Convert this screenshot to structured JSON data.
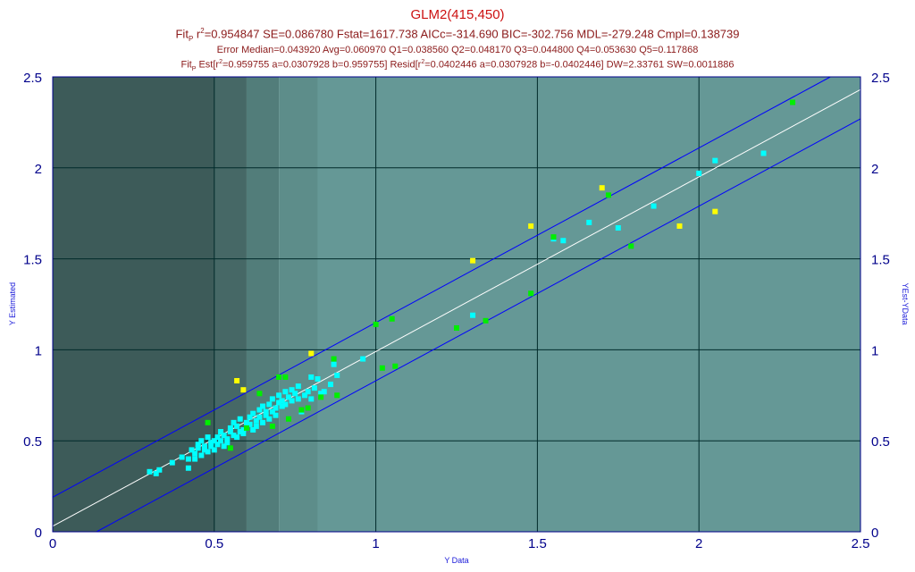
{
  "header": {
    "title": "GLM2(415,450)",
    "fit_prefix": "Fit",
    "fit_sub": "P",
    "fit_r": " r",
    "fit_sup": "2",
    "fit_rest": "=0.954847 SE=0.086780 Fstat=1617.738 AICc=-314.690 BIC=-302.756 MDL=-279.248 Cmpl=0.138739",
    "error_line": "Error Median=0.043920 Avg=0.060970 Q1=0.038560 Q2=0.048170 Q3=0.044800 Q4=0.053630 Q5=0.117868",
    "est_prefix": "Fit",
    "est_sub": "P",
    "est_a": " Est[r",
    "est_sup1": "2",
    "est_b": "=0.959755 a=0.0307928 b=0.959755] Resid[r",
    "est_sup2": "2",
    "est_c": "=0.0402446 a=0.0307928 b=-0.0402446] DW=2.33761 SW=0.0011886"
  },
  "chart_data": {
    "type": "scatter",
    "xlabel": "Y Data",
    "ylabel": "Y Estimated",
    "y2label": "YEst-YData",
    "xlim": [
      0,
      2.5
    ],
    "ylim": [
      0,
      2.5
    ],
    "x_ticks": [
      "0",
      "0.5",
      "1",
      "1.5",
      "2",
      "2.5"
    ],
    "y_ticks": [
      "0",
      "0.5",
      "1",
      "1.5",
      "2",
      "2.5"
    ],
    "grid": true,
    "background_bands": [
      {
        "from": 0,
        "to": 0.5,
        "color": "#3d5b59"
      },
      {
        "from": 0.5,
        "to": 0.6,
        "color": "#466866"
      },
      {
        "from": 0.6,
        "to": 0.7,
        "color": "#527d7a"
      },
      {
        "from": 0.7,
        "to": 0.82,
        "color": "#5d8d8a"
      },
      {
        "from": 0.82,
        "to": 2.5,
        "color": "#659896"
      }
    ],
    "fit_line": {
      "intercept": 0.0307928,
      "slope": 0.959755,
      "color": "#ffffff"
    },
    "band_lines": [
      {
        "intercept": 0.19,
        "slope": 0.959755,
        "color": "#0000ff"
      },
      {
        "intercept": -0.13,
        "slope": 0.959755,
        "color": "#0000ff"
      }
    ],
    "series": [
      {
        "color": "#00ffff",
        "points": [
          [
            0.3,
            0.33
          ],
          [
            0.32,
            0.32
          ],
          [
            0.33,
            0.34
          ],
          [
            0.37,
            0.38
          ],
          [
            0.4,
            0.41
          ],
          [
            0.42,
            0.35
          ],
          [
            0.42,
            0.4
          ],
          [
            0.43,
            0.45
          ],
          [
            0.44,
            0.43
          ],
          [
            0.44,
            0.4
          ],
          [
            0.45,
            0.46
          ],
          [
            0.45,
            0.48
          ],
          [
            0.46,
            0.42
          ],
          [
            0.46,
            0.5
          ],
          [
            0.47,
            0.45
          ],
          [
            0.47,
            0.47
          ],
          [
            0.48,
            0.44
          ],
          [
            0.48,
            0.52
          ],
          [
            0.49,
            0.49
          ],
          [
            0.49,
            0.47
          ],
          [
            0.5,
            0.5
          ],
          [
            0.5,
            0.45
          ],
          [
            0.51,
            0.52
          ],
          [
            0.51,
            0.48
          ],
          [
            0.52,
            0.55
          ],
          [
            0.52,
            0.5
          ],
          [
            0.53,
            0.47
          ],
          [
            0.53,
            0.53
          ],
          [
            0.54,
            0.51
          ],
          [
            0.54,
            0.49
          ],
          [
            0.55,
            0.57
          ],
          [
            0.55,
            0.55
          ],
          [
            0.56,
            0.53
          ],
          [
            0.56,
            0.6
          ],
          [
            0.57,
            0.52
          ],
          [
            0.57,
            0.58
          ],
          [
            0.58,
            0.55
          ],
          [
            0.58,
            0.62
          ],
          [
            0.59,
            0.56
          ],
          [
            0.59,
            0.54
          ],
          [
            0.6,
            0.6
          ],
          [
            0.6,
            0.57
          ],
          [
            0.61,
            0.63
          ],
          [
            0.61,
            0.59
          ],
          [
            0.62,
            0.56
          ],
          [
            0.62,
            0.65
          ],
          [
            0.63,
            0.61
          ],
          [
            0.63,
            0.58
          ],
          [
            0.64,
            0.67
          ],
          [
            0.64,
            0.63
          ],
          [
            0.65,
            0.6
          ],
          [
            0.65,
            0.69
          ],
          [
            0.66,
            0.64
          ],
          [
            0.66,
            0.66
          ],
          [
            0.67,
            0.62
          ],
          [
            0.67,
            0.7
          ],
          [
            0.68,
            0.66
          ],
          [
            0.68,
            0.73
          ],
          [
            0.69,
            0.68
          ],
          [
            0.69,
            0.64
          ],
          [
            0.7,
            0.71
          ],
          [
            0.7,
            0.75
          ],
          [
            0.71,
            0.69
          ],
          [
            0.71,
            0.72
          ],
          [
            0.72,
            0.77
          ],
          [
            0.72,
            0.7
          ],
          [
            0.73,
            0.74
          ],
          [
            0.74,
            0.78
          ],
          [
            0.74,
            0.72
          ],
          [
            0.75,
            0.76
          ],
          [
            0.76,
            0.8
          ],
          [
            0.76,
            0.73
          ],
          [
            0.77,
            0.66
          ],
          [
            0.78,
            0.75
          ],
          [
            0.79,
            0.77
          ],
          [
            0.8,
            0.73
          ],
          [
            0.8,
            0.85
          ],
          [
            0.81,
            0.79
          ],
          [
            0.82,
            0.84
          ],
          [
            0.83,
            0.76
          ],
          [
            0.84,
            0.77
          ],
          [
            0.86,
            0.81
          ],
          [
            0.87,
            0.92
          ],
          [
            0.88,
            0.86
          ],
          [
            0.96,
            0.95
          ],
          [
            1.3,
            1.19
          ],
          [
            1.55,
            1.61
          ],
          [
            1.58,
            1.6
          ],
          [
            1.66,
            1.7
          ],
          [
            1.75,
            1.67
          ],
          [
            1.86,
            1.79
          ],
          [
            2.0,
            1.97
          ],
          [
            2.05,
            2.04
          ],
          [
            2.2,
            2.08
          ]
        ]
      },
      {
        "color": "#00ee00",
        "points": [
          [
            0.48,
            0.6
          ],
          [
            0.55,
            0.46
          ],
          [
            0.6,
            0.57
          ],
          [
            0.64,
            0.76
          ],
          [
            0.68,
            0.58
          ],
          [
            0.7,
            0.85
          ],
          [
            0.72,
            0.85
          ],
          [
            0.73,
            0.62
          ],
          [
            0.77,
            0.67
          ],
          [
            0.79,
            0.68
          ],
          [
            0.83,
            0.74
          ],
          [
            0.87,
            0.95
          ],
          [
            0.88,
            0.75
          ],
          [
            1.0,
            1.14
          ],
          [
            1.05,
            1.17
          ],
          [
            1.02,
            0.9
          ],
          [
            1.06,
            0.91
          ],
          [
            1.25,
            1.12
          ],
          [
            1.34,
            1.16
          ],
          [
            1.48,
            1.31
          ],
          [
            1.55,
            1.62
          ],
          [
            1.72,
            1.85
          ],
          [
            1.79,
            1.57
          ],
          [
            2.29,
            2.36
          ]
        ]
      },
      {
        "color": "#ffff00",
        "points": [
          [
            0.57,
            0.83
          ],
          [
            0.59,
            0.78
          ],
          [
            0.8,
            0.98
          ],
          [
            1.3,
            1.49
          ],
          [
            1.48,
            1.68
          ],
          [
            1.7,
            1.89
          ],
          [
            1.94,
            1.68
          ],
          [
            2.05,
            1.76
          ]
        ]
      }
    ]
  }
}
